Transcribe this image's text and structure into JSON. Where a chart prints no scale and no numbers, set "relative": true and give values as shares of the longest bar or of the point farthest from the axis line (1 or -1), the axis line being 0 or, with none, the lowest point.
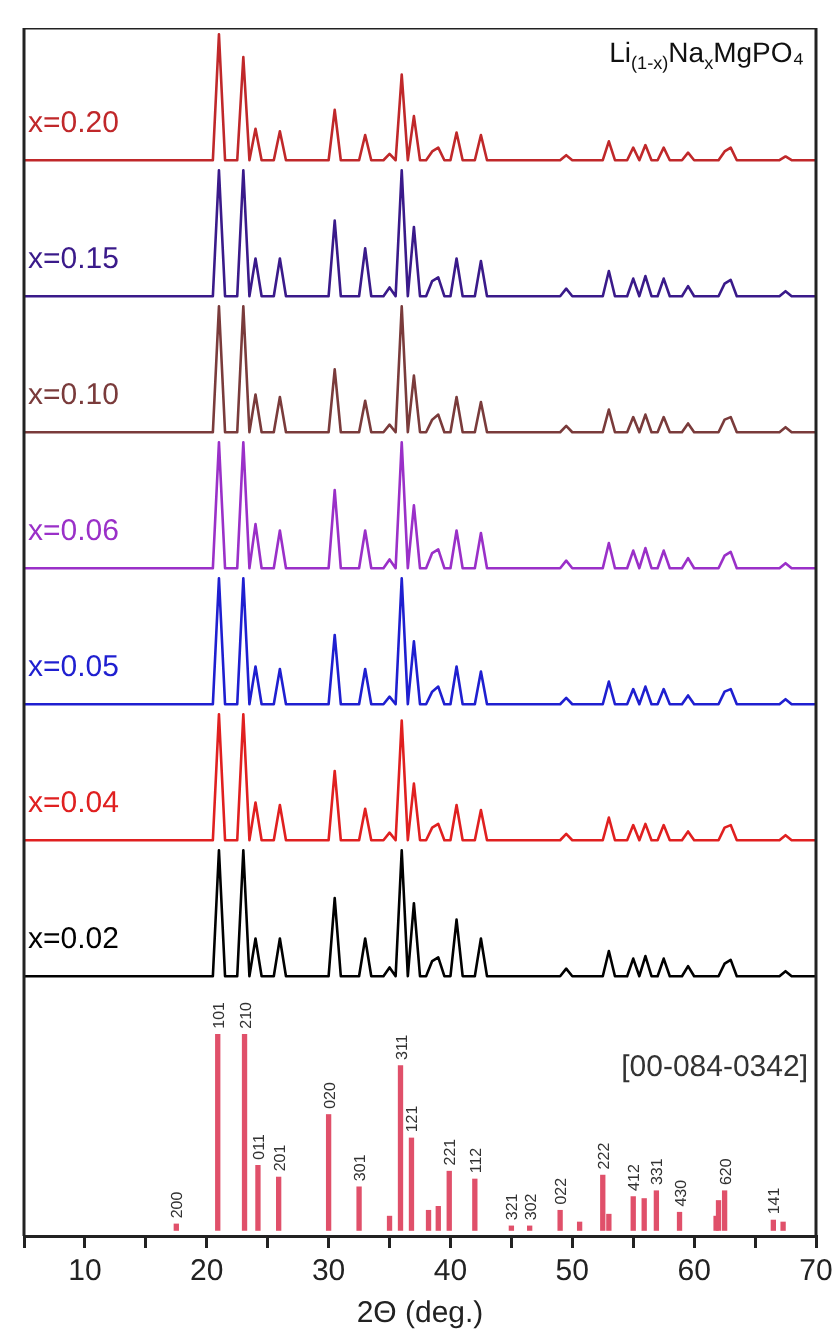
{
  "chart_data": [
    {
      "type": "line",
      "title": "Li$_{(1-x)}$Na$_{x}$MgPO₄",
      "relative": true,
      "tick_labels": false,
      "categories": [
        null,
        null,
        null,
        null,
        null,
        null,
        null,
        null,
        null,
        null,
        null,
        null,
        null,
        null,
        null,
        null,
        null,
        null,
        null,
        null,
        null,
        null,
        null,
        null,
        null,
        null,
        null,
        null,
        null,
        null,
        null,
        null,
        null,
        null,
        null,
        null,
        null,
        null,
        null,
        null,
        null,
        null,
        null,
        null,
        null,
        null,
        null,
        null,
        null,
        null,
        null,
        null,
        null,
        null,
        null,
        null,
        null,
        null,
        null,
        null,
        null,
        null,
        null,
        null,
        null,
        null,
        null,
        null,
        null,
        null,
        null,
        null,
        null,
        null,
        null,
        null,
        null,
        null,
        null,
        null,
        null,
        null,
        null,
        null,
        null,
        null,
        null,
        null,
        null,
        null,
        null,
        null,
        null,
        null,
        null,
        null,
        null,
        null,
        null,
        null,
        null,
        null,
        null,
        null,
        null,
        null,
        null,
        null,
        null,
        null,
        null,
        null,
        null,
        null,
        null,
        null,
        null,
        null,
        null,
        null,
        null,
        null,
        null,
        null,
        null,
        null,
        null,
        null,
        null,
        null,
        null
      ],
      "series": [
        {
          "name": "x=0.20",
          "color": "#c0282a",
          "values": [
            0,
            0,
            0,
            0,
            0,
            0,
            0,
            0,
            0,
            0,
            0,
            0,
            0,
            0,
            0,
            0,
            0,
            0,
            0,
            0,
            0,
            0,
            0,
            0,
            0,
            0,
            0,
            0,
            0,
            0,
            0,
            0,
            1,
            0,
            0,
            0,
            0.82,
            0,
            0.25,
            0,
            0,
            0,
            0.23,
            0,
            0,
            0,
            0,
            0,
            0,
            0,
            0,
            0.4,
            0,
            0,
            0,
            0,
            0.2,
            0,
            0,
            0,
            0.05,
            0,
            0.68,
            0,
            0.35,
            0,
            0,
            0.07,
            0.1,
            0,
            0,
            0.22,
            0,
            0,
            0,
            0.2,
            0,
            0,
            0,
            0,
            0,
            0,
            0,
            0,
            0,
            0,
            0,
            0,
            0,
            0.04,
            0,
            0,
            0,
            0,
            0,
            0,
            0.15,
            0,
            0,
            0,
            0.1,
            0,
            0.12,
            0,
            0,
            0.1,
            0,
            0,
            0,
            0.06,
            0,
            0,
            0,
            0,
            0,
            0.07,
            0.1,
            0,
            0,
            0,
            0,
            0,
            0,
            0,
            0,
            0.03,
            0,
            0,
            0,
            0,
            0
          ]
        }
      ]
    },
    {
      "type": "line",
      "relative": true,
      "tick_labels": false,
      "categories": [
        null,
        null,
        null,
        null,
        null,
        null,
        null,
        null,
        null,
        null,
        null,
        null,
        null,
        null,
        null,
        null,
        null,
        null,
        null,
        null,
        null,
        null,
        null,
        null,
        null,
        null,
        null,
        null,
        null,
        null,
        null,
        null,
        null,
        null,
        null,
        null,
        null,
        null,
        null,
        null,
        null,
        null,
        null,
        null,
        null,
        null,
        null,
        null,
        null,
        null,
        null,
        null,
        null,
        null,
        null,
        null,
        null,
        null,
        null,
        null,
        null,
        null,
        null,
        null,
        null,
        null,
        null,
        null,
        null,
        null,
        null,
        null,
        null,
        null,
        null,
        null,
        null,
        null,
        null,
        null,
        null,
        null,
        null,
        null,
        null,
        null,
        null,
        null,
        null,
        null,
        null,
        null,
        null,
        null,
        null,
        null,
        null,
        null,
        null,
        null,
        null,
        null,
        null,
        null,
        null,
        null,
        null,
        null,
        null,
        null,
        null,
        null,
        null,
        null,
        null,
        null,
        null,
        null,
        null,
        null,
        null,
        null,
        null,
        null,
        null,
        null,
        null,
        null,
        null,
        null,
        null
      ],
      "series": [
        {
          "name": "x=0.15",
          "color": "#3a1a8a",
          "values": [
            0,
            0,
            0,
            0,
            0,
            0,
            0,
            0,
            0,
            0,
            0,
            0,
            0,
            0,
            0,
            0,
            0,
            0,
            0,
            0,
            0,
            0,
            0,
            0,
            0,
            0,
            0,
            0,
            0,
            0,
            0,
            0,
            1,
            0,
            0,
            0,
            1,
            0,
            0.3,
            0,
            0,
            0,
            0.3,
            0,
            0,
            0,
            0,
            0,
            0,
            0,
            0,
            0.6,
            0,
            0,
            0,
            0,
            0.38,
            0,
            0,
            0,
            0.07,
            0,
            1,
            0,
            0.55,
            0,
            0,
            0.12,
            0.15,
            0,
            0,
            0.3,
            0,
            0,
            0,
            0.28,
            0,
            0,
            0,
            0,
            0,
            0,
            0,
            0,
            0,
            0,
            0,
            0,
            0,
            0.06,
            0,
            0,
            0,
            0,
            0,
            0,
            0.2,
            0,
            0,
            0,
            0.14,
            0,
            0.16,
            0,
            0,
            0.14,
            0,
            0,
            0,
            0.08,
            0,
            0,
            0,
            0,
            0,
            0.1,
            0.13,
            0,
            0,
            0,
            0,
            0,
            0,
            0,
            0,
            0.04,
            0,
            0,
            0,
            0,
            0
          ]
        }
      ]
    },
    {
      "type": "line",
      "relative": true,
      "tick_labels": false,
      "categories": [
        null,
        null,
        null,
        null,
        null,
        null,
        null,
        null,
        null,
        null,
        null,
        null,
        null,
        null,
        null,
        null,
        null,
        null,
        null,
        null,
        null,
        null,
        null,
        null,
        null,
        null,
        null,
        null,
        null,
        null,
        null,
        null,
        null,
        null,
        null,
        null,
        null,
        null,
        null,
        null,
        null,
        null,
        null,
        null,
        null,
        null,
        null,
        null,
        null,
        null,
        null,
        null,
        null,
        null,
        null,
        null,
        null,
        null,
        null,
        null,
        null,
        null,
        null,
        null,
        null,
        null,
        null,
        null,
        null,
        null,
        null,
        null,
        null,
        null,
        null,
        null,
        null,
        null,
        null,
        null,
        null,
        null,
        null,
        null,
        null,
        null,
        null,
        null,
        null,
        null,
        null,
        null,
        null,
        null,
        null,
        null,
        null,
        null,
        null,
        null,
        null,
        null,
        null,
        null,
        null,
        null,
        null,
        null,
        null,
        null,
        null,
        null,
        null,
        null,
        null,
        null,
        null,
        null,
        null,
        null,
        null,
        null,
        null,
        null,
        null,
        null,
        null,
        null,
        null,
        null,
        null
      ],
      "series": [
        {
          "name": "x=0.10",
          "color": "#7a3b3b",
          "values": [
            0,
            0,
            0,
            0,
            0,
            0,
            0,
            0,
            0,
            0,
            0,
            0,
            0,
            0,
            0,
            0,
            0,
            0,
            0,
            0,
            0,
            0,
            0,
            0,
            0,
            0,
            0,
            0,
            0,
            0,
            0,
            0,
            1,
            0,
            0,
            0,
            1,
            0,
            0.3,
            0,
            0,
            0,
            0.28,
            0,
            0,
            0,
            0,
            0,
            0,
            0,
            0,
            0.5,
            0,
            0,
            0,
            0,
            0.25,
            0,
            0,
            0,
            0.06,
            0,
            1,
            0,
            0.45,
            0,
            0,
            0.1,
            0.14,
            0,
            0,
            0.28,
            0,
            0,
            0,
            0.24,
            0,
            0,
            0,
            0,
            0,
            0,
            0,
            0,
            0,
            0,
            0,
            0,
            0,
            0.05,
            0,
            0,
            0,
            0,
            0,
            0,
            0.18,
            0,
            0,
            0,
            0.12,
            0,
            0.14,
            0,
            0,
            0.12,
            0,
            0,
            0,
            0.07,
            0,
            0,
            0,
            0,
            0,
            0.1,
            0.12,
            0,
            0,
            0,
            0,
            0,
            0,
            0,
            0,
            0.04,
            0,
            0,
            0,
            0,
            0
          ]
        }
      ]
    },
    {
      "type": "line",
      "relative": true,
      "tick_labels": false,
      "categories": [
        null,
        null,
        null,
        null,
        null,
        null,
        null,
        null,
        null,
        null,
        null,
        null,
        null,
        null,
        null,
        null,
        null,
        null,
        null,
        null,
        null,
        null,
        null,
        null,
        null,
        null,
        null,
        null,
        null,
        null,
        null,
        null,
        null,
        null,
        null,
        null,
        null,
        null,
        null,
        null,
        null,
        null,
        null,
        null,
        null,
        null,
        null,
        null,
        null,
        null,
        null,
        null,
        null,
        null,
        null,
        null,
        null,
        null,
        null,
        null,
        null,
        null,
        null,
        null,
        null,
        null,
        null,
        null,
        null,
        null,
        null,
        null,
        null,
        null,
        null,
        null,
        null,
        null,
        null,
        null,
        null,
        null,
        null,
        null,
        null,
        null,
        null,
        null,
        null,
        null,
        null,
        null,
        null,
        null,
        null,
        null,
        null,
        null,
        null,
        null,
        null,
        null,
        null,
        null,
        null,
        null,
        null,
        null,
        null,
        null,
        null,
        null,
        null,
        null,
        null,
        null,
        null,
        null,
        null,
        null,
        null,
        null,
        null,
        null,
        null,
        null,
        null,
        null,
        null,
        null,
        null
      ],
      "series": [
        {
          "name": "x=0.06",
          "color": "#9a30c8",
          "values": [
            0,
            0,
            0,
            0,
            0,
            0,
            0,
            0,
            0,
            0,
            0,
            0,
            0,
            0,
            0,
            0,
            0,
            0,
            0,
            0,
            0,
            0,
            0,
            0,
            0,
            0,
            0,
            0,
            0,
            0,
            0,
            0,
            1,
            0,
            0,
            0,
            1,
            0,
            0.35,
            0,
            0,
            0,
            0.3,
            0,
            0,
            0,
            0,
            0,
            0,
            0,
            0,
            0.62,
            0,
            0,
            0,
            0,
            0.3,
            0,
            0,
            0,
            0.07,
            0,
            1,
            0,
            0.5,
            0,
            0,
            0.12,
            0.15,
            0,
            0,
            0.3,
            0,
            0,
            0,
            0.28,
            0,
            0,
            0,
            0,
            0,
            0,
            0,
            0,
            0,
            0,
            0,
            0,
            0,
            0.06,
            0,
            0,
            0,
            0,
            0,
            0,
            0.2,
            0,
            0,
            0,
            0.14,
            0,
            0.16,
            0,
            0,
            0.14,
            0,
            0,
            0,
            0.08,
            0,
            0,
            0,
            0,
            0,
            0.1,
            0.13,
            0,
            0,
            0,
            0,
            0,
            0,
            0,
            0,
            0.04,
            0,
            0,
            0,
            0,
            0
          ]
        }
      ]
    },
    {
      "type": "line",
      "relative": true,
      "tick_labels": false,
      "categories": [
        null,
        null,
        null,
        null,
        null,
        null,
        null,
        null,
        null,
        null,
        null,
        null,
        null,
        null,
        null,
        null,
        null,
        null,
        null,
        null,
        null,
        null,
        null,
        null,
        null,
        null,
        null,
        null,
        null,
        null,
        null,
        null,
        null,
        null,
        null,
        null,
        null,
        null,
        null,
        null,
        null,
        null,
        null,
        null,
        null,
        null,
        null,
        null,
        null,
        null,
        null,
        null,
        null,
        null,
        null,
        null,
        null,
        null,
        null,
        null,
        null,
        null,
        null,
        null,
        null,
        null,
        null,
        null,
        null,
        null,
        null,
        null,
        null,
        null,
        null,
        null,
        null,
        null,
        null,
        null,
        null,
        null,
        null,
        null,
        null,
        null,
        null,
        null,
        null,
        null,
        null,
        null,
        null,
        null,
        null,
        null,
        null,
        null,
        null,
        null,
        null,
        null,
        null,
        null,
        null,
        null,
        null,
        null,
        null,
        null,
        null,
        null,
        null,
        null,
        null,
        null,
        null,
        null,
        null,
        null,
        null,
        null,
        null,
        null,
        null,
        null,
        null,
        null,
        null,
        null,
        null
      ],
      "series": [
        {
          "name": "x=0.05",
          "color": "#1f1fd0",
          "values": [
            0,
            0,
            0,
            0,
            0,
            0,
            0,
            0,
            0,
            0,
            0,
            0,
            0,
            0,
            0,
            0,
            0,
            0,
            0,
            0,
            0,
            0,
            0,
            0,
            0,
            0,
            0,
            0,
            0,
            0,
            0,
            0,
            1,
            0,
            0,
            0,
            1,
            0,
            0.3,
            0,
            0,
            0,
            0.28,
            0,
            0,
            0,
            0,
            0,
            0,
            0,
            0,
            0.55,
            0,
            0,
            0,
            0,
            0.28,
            0,
            0,
            0,
            0.06,
            0,
            1,
            0,
            0.5,
            0,
            0,
            0.1,
            0.14,
            0,
            0,
            0.3,
            0,
            0,
            0,
            0.26,
            0,
            0,
            0,
            0,
            0,
            0,
            0,
            0,
            0,
            0,
            0,
            0,
            0,
            0.05,
            0,
            0,
            0,
            0,
            0,
            0,
            0.18,
            0,
            0,
            0,
            0.12,
            0,
            0.14,
            0,
            0,
            0.12,
            0,
            0,
            0,
            0.07,
            0,
            0,
            0,
            0,
            0,
            0.1,
            0.12,
            0,
            0,
            0,
            0,
            0,
            0,
            0,
            0,
            0.04,
            0,
            0,
            0,
            0,
            0
          ]
        }
      ]
    },
    {
      "type": "line",
      "relative": true,
      "tick_labels": false,
      "categories": [
        null,
        null,
        null,
        null,
        null,
        null,
        null,
        null,
        null,
        null,
        null,
        null,
        null,
        null,
        null,
        null,
        null,
        null,
        null,
        null,
        null,
        null,
        null,
        null,
        null,
        null,
        null,
        null,
        null,
        null,
        null,
        null,
        null,
        null,
        null,
        null,
        null,
        null,
        null,
        null,
        null,
        null,
        null,
        null,
        null,
        null,
        null,
        null,
        null,
        null,
        null,
        null,
        null,
        null,
        null,
        null,
        null,
        null,
        null,
        null,
        null,
        null,
        null,
        null,
        null,
        null,
        null,
        null,
        null,
        null,
        null,
        null,
        null,
        null,
        null,
        null,
        null,
        null,
        null,
        null,
        null,
        null,
        null,
        null,
        null,
        null,
        null,
        null,
        null,
        null,
        null,
        null,
        null,
        null,
        null,
        null,
        null,
        null,
        null,
        null,
        null,
        null,
        null,
        null,
        null,
        null,
        null,
        null,
        null,
        null,
        null,
        null,
        null,
        null,
        null,
        null,
        null,
        null,
        null,
        null,
        null,
        null,
        null,
        null,
        null,
        null,
        null,
        null,
        null,
        null,
        null
      ],
      "series": [
        {
          "name": "x=0.04",
          "color": "#e02020",
          "values": [
            0,
            0,
            0,
            0,
            0,
            0,
            0,
            0,
            0,
            0,
            0,
            0,
            0,
            0,
            0,
            0,
            0,
            0,
            0,
            0,
            0,
            0,
            0,
            0,
            0,
            0,
            0,
            0,
            0,
            0,
            0,
            0,
            1,
            0,
            0,
            0,
            1,
            0,
            0.3,
            0,
            0,
            0,
            0.28,
            0,
            0,
            0,
            0,
            0,
            0,
            0,
            0,
            0.55,
            0,
            0,
            0,
            0,
            0.25,
            0,
            0,
            0,
            0.06,
            0,
            0.95,
            0,
            0.45,
            0,
            0,
            0.1,
            0.13,
            0,
            0,
            0.28,
            0,
            0,
            0,
            0.24,
            0,
            0,
            0,
            0,
            0,
            0,
            0,
            0,
            0,
            0,
            0,
            0,
            0,
            0.05,
            0,
            0,
            0,
            0,
            0,
            0,
            0.18,
            0,
            0,
            0,
            0.12,
            0,
            0.13,
            0,
            0,
            0.12,
            0,
            0,
            0,
            0.07,
            0,
            0,
            0,
            0,
            0,
            0.1,
            0.12,
            0,
            0,
            0,
            0,
            0,
            0,
            0,
            0,
            0.04,
            0,
            0,
            0,
            0,
            0
          ]
        }
      ]
    },
    {
      "type": "line",
      "relative": true,
      "tick_labels": false,
      "categories": [
        null,
        null,
        null,
        null,
        null,
        null,
        null,
        null,
        null,
        null,
        null,
        null,
        null,
        null,
        null,
        null,
        null,
        null,
        null,
        null,
        null,
        null,
        null,
        null,
        null,
        null,
        null,
        null,
        null,
        null,
        null,
        null,
        null,
        null,
        null,
        null,
        null,
        null,
        null,
        null,
        null,
        null,
        null,
        null,
        null,
        null,
        null,
        null,
        null,
        null,
        null,
        null,
        null,
        null,
        null,
        null,
        null,
        null,
        null,
        null,
        null,
        null,
        null,
        null,
        null,
        null,
        null,
        null,
        null,
        null,
        null,
        null,
        null,
        null,
        null,
        null,
        null,
        null,
        null,
        null,
        null,
        null,
        null,
        null,
        null,
        null,
        null,
        null,
        null,
        null,
        null,
        null,
        null,
        null,
        null,
        null,
        null,
        null,
        null,
        null,
        null,
        null,
        null,
        null,
        null,
        null,
        null,
        null,
        null,
        null,
        null,
        null,
        null,
        null,
        null,
        null,
        null,
        null,
        null,
        null,
        null,
        null,
        null,
        null,
        null,
        null,
        null,
        null,
        null,
        null,
        null
      ],
      "series": [
        {
          "name": "x=0.02",
          "color": "#000000",
          "values": [
            0,
            0,
            0,
            0,
            0,
            0,
            0,
            0,
            0,
            0,
            0,
            0,
            0,
            0,
            0,
            0,
            0,
            0,
            0,
            0,
            0,
            0,
            0,
            0,
            0,
            0,
            0,
            0,
            0,
            0,
            0,
            0,
            1,
            0,
            0,
            0,
            1,
            0,
            0.3,
            0,
            0,
            0,
            0.3,
            0,
            0,
            0,
            0,
            0,
            0,
            0,
            0,
            0.62,
            0,
            0,
            0,
            0,
            0.3,
            0,
            0,
            0,
            0.07,
            0,
            1,
            0,
            0.58,
            0,
            0,
            0.12,
            0.15,
            0,
            0,
            0.45,
            0,
            0,
            0,
            0.3,
            0,
            0,
            0,
            0,
            0,
            0,
            0,
            0,
            0,
            0,
            0,
            0,
            0,
            0.06,
            0,
            0,
            0,
            0,
            0,
            0,
            0.2,
            0,
            0,
            0,
            0.14,
            0,
            0.16,
            0,
            0,
            0.14,
            0,
            0,
            0,
            0.08,
            0,
            0,
            0,
            0,
            0,
            0.1,
            0.13,
            0,
            0,
            0,
            0,
            0,
            0,
            0,
            0,
            0.04,
            0,
            0,
            0,
            0,
            0
          ]
        }
      ]
    },
    {
      "type": "bar",
      "relative": true,
      "xlim": [
        5,
        70
      ],
      "tick_labels": "x",
      "xlabel": "2Θ (deg.)",
      "color": "#e0506a",
      "xticks": [
        {
          "value": 5,
          "label": null
        },
        10,
        {
          "value": 15,
          "label": null
        },
        20,
        {
          "value": 25,
          "label": null
        },
        30,
        {
          "value": 35,
          "label": null
        },
        40,
        {
          "value": 45,
          "label": null
        },
        50,
        {
          "value": 55,
          "label": null
        },
        60,
        {
          "value": 65,
          "label": null
        },
        70
      ],
      "x": [
        17.5,
        20.9,
        23.1,
        24.2,
        25.9,
        30.0,
        32.5,
        35.0,
        35.9,
        36.8,
        38.2,
        39.0,
        39.9,
        42.0,
        45.0,
        46.5,
        49.0,
        50.6,
        52.5,
        53.0,
        55.0,
        55.9,
        56.9,
        58.8,
        61.8,
        62.0,
        62.5,
        66.5,
        67.3
      ],
      "values": [
        0.03,
        1,
        1,
        0.33,
        0.27,
        0.59,
        0.22,
        0.07,
        0.84,
        0.47,
        0.1,
        0.12,
        0.3,
        0.26,
        0.02,
        0.02,
        0.1,
        0.04,
        0.28,
        0.08,
        0.17,
        0.16,
        0.2,
        0.09,
        0.07,
        0.15,
        0.2,
        0.05,
        0.04
      ],
      "annotations": [
        "[00-084-0342]",
        {
          "text": "200",
          "x": 17.5,
          "y": 0.03
        },
        {
          "text": "101",
          "x": 20.9,
          "y": 1
        },
        {
          "text": "210",
          "x": 23.1,
          "y": 1
        },
        {
          "text": "011",
          "x": 24.2,
          "y": 0.33
        },
        {
          "text": "201",
          "x": 25.9,
          "y": 0.27
        },
        {
          "text": "020",
          "x": 30.0,
          "y": 0.59
        },
        {
          "text": "301",
          "x": 32.5,
          "y": 0.22
        },
        {
          "text": "311",
          "x": 35.9,
          "y": 0.84
        },
        {
          "text": "121",
          "x": 36.8,
          "y": 0.47
        },
        {
          "text": "221",
          "x": 39.9,
          "y": 0.3
        },
        {
          "text": "112",
          "x": 42.0,
          "y": 0.26
        },
        {
          "text": "321",
          "x": 45.0,
          "y": 0.02
        },
        {
          "text": "302",
          "x": 46.5,
          "y": 0.02
        },
        {
          "text": "022",
          "x": 49.0,
          "y": 0.1
        },
        {
          "text": "222",
          "x": 52.5,
          "y": 0.28
        },
        {
          "text": "412",
          "x": 55.0,
          "y": 0.17
        },
        {
          "text": "331",
          "x": 56.9,
          "y": 0.2
        },
        {
          "text": "430",
          "x": 58.8,
          "y": 0.09
        },
        {
          "text": "620",
          "x": 62.5,
          "y": 0.2
        },
        {
          "text": "141",
          "x": 66.5,
          "y": 0.05
        }
      ]
    }
  ]
}
